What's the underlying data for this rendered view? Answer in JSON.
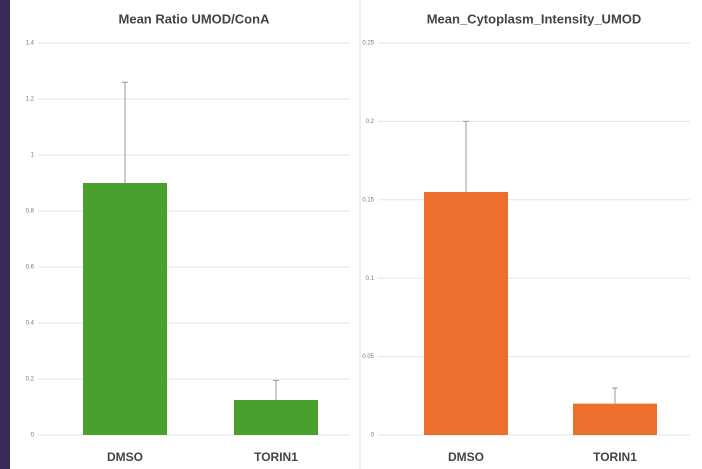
{
  "chart_data": [
    {
      "type": "bar",
      "title": "Mean Ratio UMOD/ConA",
      "categories": [
        "DMSO",
        "TORIN1"
      ],
      "values": [
        0.9,
        0.125
      ],
      "errors": [
        0.36,
        0.07
      ],
      "color": "#4aa02c",
      "ylim": [
        0,
        1.4
      ],
      "yticks": [
        0,
        0.2,
        0.4,
        0.6,
        0.8,
        1,
        1.2,
        1.4
      ],
      "grid": true
    },
    {
      "type": "bar",
      "title": "Mean_Cytoplasm_Intensity_UMOD",
      "categories": [
        "DMSO",
        "TORIN1"
      ],
      "values": [
        0.155,
        0.02
      ],
      "errors": [
        0.045,
        0.01
      ],
      "color": "#ec6f2d",
      "ylim": [
        0,
        0.25
      ],
      "yticks": [
        0,
        0.05,
        0.1,
        0.15,
        0.2,
        0.25
      ],
      "grid": true
    }
  ]
}
